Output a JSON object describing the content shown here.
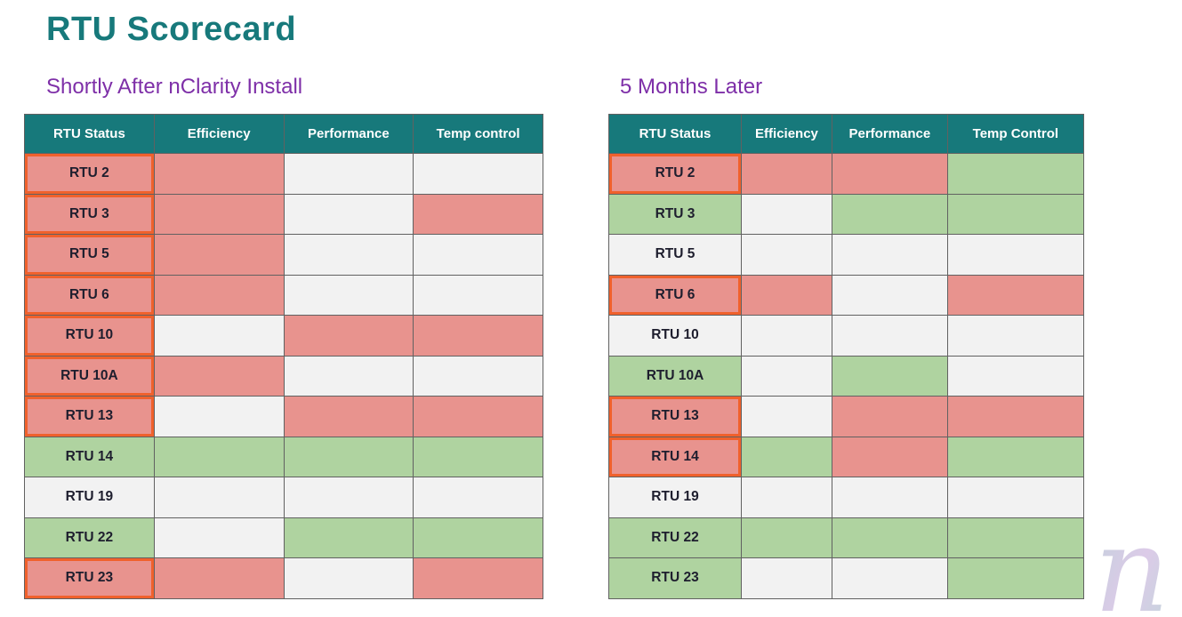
{
  "page_title": "RTU Scorecard",
  "watermark_letter": "n",
  "colors": {
    "teal_header": "#17797B",
    "purple_subtitle": "#7E2FA8",
    "red": "#E8938E",
    "green": "#AFD3A0",
    "gray": "#F2F2F2",
    "orange_flag": "#F0612C",
    "header_text": "#FFFFFF",
    "cell_border": "#616161"
  },
  "chart_data": [
    {
      "type": "table",
      "title": "Shortly After nClarity Install",
      "columns": [
        "RTU Status",
        "Efficiency",
        "Performance",
        "Temp control"
      ],
      "rows": [
        {
          "rtu": "RTU 2",
          "flagged": true,
          "status": "red",
          "efficiency": "red",
          "performance": "gray",
          "temp_control": "gray"
        },
        {
          "rtu": "RTU 3",
          "flagged": true,
          "status": "red",
          "efficiency": "red",
          "performance": "gray",
          "temp_control": "red"
        },
        {
          "rtu": "RTU 5",
          "flagged": true,
          "status": "red",
          "efficiency": "red",
          "performance": "gray",
          "temp_control": "gray"
        },
        {
          "rtu": "RTU 6",
          "flagged": true,
          "status": "red",
          "efficiency": "red",
          "performance": "gray",
          "temp_control": "gray"
        },
        {
          "rtu": "RTU 10",
          "flagged": true,
          "status": "red",
          "efficiency": "gray",
          "performance": "red",
          "temp_control": "red"
        },
        {
          "rtu": "RTU 10A",
          "flagged": true,
          "status": "red",
          "efficiency": "red",
          "performance": "gray",
          "temp_control": "gray"
        },
        {
          "rtu": "RTU 13",
          "flagged": true,
          "status": "red",
          "efficiency": "gray",
          "performance": "red",
          "temp_control": "red"
        },
        {
          "rtu": "RTU 14",
          "flagged": false,
          "status": "green",
          "efficiency": "green",
          "performance": "green",
          "temp_control": "green"
        },
        {
          "rtu": "RTU 19",
          "flagged": false,
          "status": "gray",
          "efficiency": "gray",
          "performance": "gray",
          "temp_control": "gray"
        },
        {
          "rtu": "RTU 22",
          "flagged": false,
          "status": "green",
          "efficiency": "gray",
          "performance": "green",
          "temp_control": "green"
        },
        {
          "rtu": "RTU 23",
          "flagged": true,
          "status": "red",
          "efficiency": "red",
          "performance": "gray",
          "temp_control": "red"
        }
      ]
    },
    {
      "type": "table",
      "title": "5 Months Later",
      "columns": [
        "RTU Status",
        "Efficiency",
        "Performance",
        "Temp Control"
      ],
      "rows": [
        {
          "rtu": "RTU 2",
          "flagged": true,
          "status": "red",
          "efficiency": "red",
          "performance": "red",
          "temp_control": "green"
        },
        {
          "rtu": "RTU 3",
          "flagged": false,
          "status": "green",
          "efficiency": "gray",
          "performance": "green",
          "temp_control": "green"
        },
        {
          "rtu": "RTU 5",
          "flagged": false,
          "status": "gray",
          "efficiency": "gray",
          "performance": "gray",
          "temp_control": "gray"
        },
        {
          "rtu": "RTU 6",
          "flagged": true,
          "status": "red",
          "efficiency": "red",
          "performance": "gray",
          "temp_control": "red"
        },
        {
          "rtu": "RTU 10",
          "flagged": false,
          "status": "gray",
          "efficiency": "gray",
          "performance": "gray",
          "temp_control": "gray"
        },
        {
          "rtu": "RTU 10A",
          "flagged": false,
          "status": "green",
          "efficiency": "gray",
          "performance": "green",
          "temp_control": "gray"
        },
        {
          "rtu": "RTU 13",
          "flagged": true,
          "status": "red",
          "efficiency": "gray",
          "performance": "red",
          "temp_control": "red"
        },
        {
          "rtu": "RTU 14",
          "flagged": true,
          "status": "red",
          "efficiency": "green",
          "performance": "red",
          "temp_control": "green"
        },
        {
          "rtu": "RTU 19",
          "flagged": false,
          "status": "gray",
          "efficiency": "gray",
          "performance": "gray",
          "temp_control": "gray"
        },
        {
          "rtu": "RTU 22",
          "flagged": false,
          "status": "green",
          "efficiency": "green",
          "performance": "green",
          "temp_control": "green"
        },
        {
          "rtu": "RTU 23",
          "flagged": false,
          "status": "green",
          "efficiency": "gray",
          "performance": "gray",
          "temp_control": "green"
        }
      ]
    }
  ]
}
